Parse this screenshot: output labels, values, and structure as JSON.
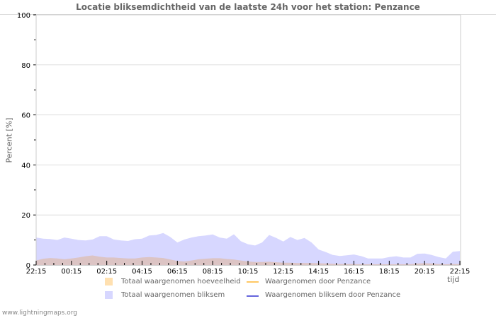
{
  "chart_data": {
    "type": "area",
    "title": "Locatie bliksemdichtheid van de laatste 24h voor het station: Penzance",
    "xlabel": "tijd",
    "ylabel": "Percent   [%]",
    "ylim": [
      0,
      100
    ],
    "yticks": [
      0,
      20,
      40,
      60,
      80,
      100
    ],
    "xticks": [
      "22:15",
      "00:15",
      "02:15",
      "04:15",
      "06:15",
      "08:15",
      "10:15",
      "12:15",
      "14:15",
      "16:15",
      "18:15",
      "20:15",
      "22:15"
    ],
    "grid": true,
    "legend_position": "bottom",
    "series": [
      {
        "name": "Totaal waargenomen bliksem",
        "style": "area",
        "color": "#d7d7ff",
        "values": [
          11,
          10.5,
          10.4,
          10,
          11,
          10.5,
          10,
          9.8,
          10.2,
          11.5,
          11.5,
          10.2,
          9.8,
          9.6,
          10.3,
          10.5,
          11.8,
          12,
          12.8,
          11.2,
          9,
          10.2,
          11,
          11.5,
          11.8,
          12.2,
          11,
          10.5,
          12.3,
          9.5,
          8.3,
          7.8,
          9,
          12,
          10.8,
          9.4,
          11.2,
          10,
          10.8,
          9,
          6.2,
          5.2,
          4,
          3.6,
          3.9,
          4.2,
          3.6,
          2.6,
          2.6,
          2.6,
          3.2,
          3.5,
          3,
          3,
          4.5,
          4.6,
          4,
          3.2,
          2.6,
          5.3,
          5.6
        ]
      },
      {
        "name": "Totaal waargenomen hoeveelheid",
        "style": "area",
        "color": "#ffe0b0",
        "values": [
          1.8,
          2.5,
          2.8,
          2.6,
          2.3,
          2.6,
          3,
          3.5,
          3.8,
          3.3,
          3,
          3,
          2.8,
          2.6,
          2.6,
          3,
          3.2,
          3,
          2.8,
          2.2,
          1.6,
          1.4,
          1.8,
          2.3,
          2.5,
          2.7,
          2.7,
          2.4,
          2.2,
          1.8,
          1.4,
          1.2,
          1.2,
          1.3,
          1.1,
          0.9,
          0.9,
          0.8,
          0.8,
          0.8,
          0.7,
          0.6,
          0.5,
          0.4,
          0.4,
          0.4,
          0.3,
          0.3,
          0.3,
          0.3,
          0.3,
          0.3,
          0.3,
          0.3,
          0.6,
          0.7,
          0.6,
          0.4,
          0.3,
          0.4,
          0.4
        ]
      },
      {
        "name": "Waargenomen door Penzance",
        "style": "line",
        "color": "#ffc864",
        "values": []
      },
      {
        "name": "Waargenomen bliksem door Penzance",
        "style": "line",
        "color": "#6464dc",
        "values": []
      }
    ]
  },
  "header": {
    "title": "Locatie bliksemdichtheid van de laatste 24h voor het station: Penzance"
  },
  "axes": {
    "ylabel": "Percent   [%]",
    "xunit": "tijd",
    "ytick_labels": [
      "100",
      "80",
      "60",
      "40",
      "20",
      "0"
    ],
    "xtick_labels": [
      "22:15",
      "00:15",
      "02:15",
      "04:15",
      "06:15",
      "08:15",
      "10:15",
      "12:15",
      "14:15",
      "16:15",
      "18:15",
      "20:15",
      "22:15"
    ]
  },
  "legend": {
    "items": [
      {
        "label": "Totaal waargenomen hoeveelheid",
        "color": "#ffe0b0",
        "kind": "swatch"
      },
      {
        "label": "Waargenomen door Penzance",
        "color": "#ffc864",
        "kind": "line"
      },
      {
        "label": "Totaal waargenomen bliksem",
        "color": "#d7d7ff",
        "kind": "swatch"
      },
      {
        "label": "Waargenomen bliksem door Penzance",
        "color": "#6464dc",
        "kind": "line"
      }
    ]
  },
  "footer": {
    "source": "www.lightningmaps.org"
  }
}
